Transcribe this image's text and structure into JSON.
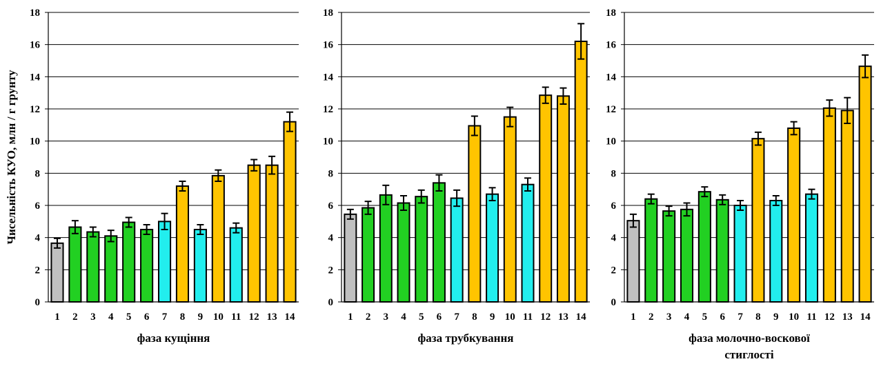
{
  "chart_data": [
    {
      "type": "bar",
      "categories": [
        "1",
        "2",
        "3",
        "4",
        "5",
        "6",
        "7",
        "8",
        "9",
        "10",
        "11",
        "12",
        "13",
        "14"
      ],
      "values": [
        3.65,
        4.65,
        4.35,
        4.1,
        4.95,
        4.5,
        5.0,
        7.2,
        4.5,
        7.85,
        4.6,
        8.5,
        8.5,
        11.2
      ],
      "errors": [
        0.3,
        0.4,
        0.3,
        0.35,
        0.3,
        0.3,
        0.5,
        0.3,
        0.3,
        0.35,
        0.3,
        0.35,
        0.55,
        0.6
      ],
      "xlabel": [
        "фаза кущіння"
      ],
      "ylabel": "Чисельність КУО, млн / г грунту",
      "ylim": [
        0,
        18
      ],
      "yticks": [
        0,
        2,
        4,
        6,
        8,
        10,
        12,
        14,
        16,
        18
      ],
      "grid": true
    },
    {
      "type": "bar",
      "categories": [
        "1",
        "2",
        "3",
        "4",
        "5",
        "6",
        "7",
        "8",
        "9",
        "10",
        "11",
        "12",
        "13",
        "14"
      ],
      "values": [
        5.45,
        5.85,
        6.65,
        6.15,
        6.55,
        7.4,
        6.45,
        10.95,
        6.7,
        11.5,
        7.3,
        12.85,
        12.8,
        16.2
      ],
      "errors": [
        0.3,
        0.4,
        0.6,
        0.45,
        0.4,
        0.5,
        0.5,
        0.6,
        0.4,
        0.6,
        0.4,
        0.5,
        0.5,
        1.1
      ],
      "xlabel": [
        "фаза трубкування"
      ],
      "ylabel": "",
      "ylim": [
        0,
        18
      ],
      "yticks": [
        0,
        2,
        4,
        6,
        8,
        10,
        12,
        14,
        16,
        18
      ],
      "grid": true
    },
    {
      "type": "bar",
      "categories": [
        "1",
        "2",
        "3",
        "4",
        "5",
        "6",
        "7",
        "8",
        "9",
        "10",
        "11",
        "12",
        "13",
        "14"
      ],
      "values": [
        5.05,
        6.4,
        5.65,
        5.75,
        6.85,
        6.35,
        6.0,
        10.15,
        6.3,
        10.8,
        6.7,
        12.05,
        11.9,
        14.65
      ],
      "errors": [
        0.4,
        0.3,
        0.3,
        0.4,
        0.3,
        0.3,
        0.3,
        0.4,
        0.3,
        0.4,
        0.3,
        0.5,
        0.8,
        0.7
      ],
      "xlabel": [
        "фаза молочно-воскової",
        "стиглості"
      ],
      "ylabel": "",
      "ylim": [
        0,
        18
      ],
      "yticks": [
        0,
        2,
        4,
        6,
        8,
        10,
        12,
        14,
        16,
        18
      ],
      "grid": true
    }
  ],
  "colors": {
    "gray": "#c0c0c0",
    "green": "#22d022",
    "cyan": "#22eeee",
    "orange": "#ffc400",
    "grid": "#000000"
  },
  "bar_color_keys": [
    "gray",
    "green",
    "green",
    "green",
    "green",
    "green",
    "cyan",
    "orange",
    "cyan",
    "orange",
    "cyan",
    "orange",
    "orange",
    "orange"
  ]
}
